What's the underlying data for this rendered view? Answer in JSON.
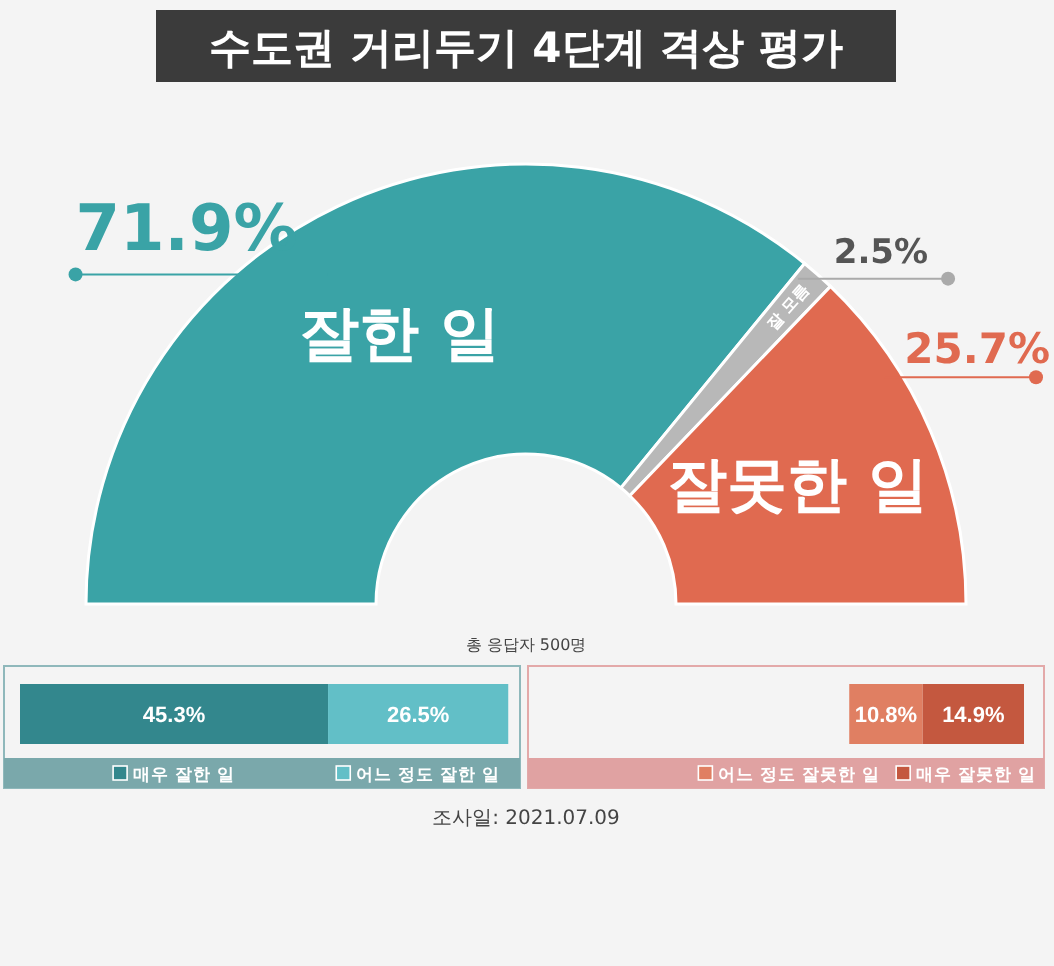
{
  "chart_data": [
    {
      "type": "donut",
      "title": "수도권 거리두기 4단계 격상 평가",
      "categories": [
        "잘한 일",
        "잘 모름",
        "잘못한 일"
      ],
      "values": [
        71.9,
        2.5,
        25.7
      ],
      "colors": [
        "#3aa3a6",
        "#b8b8b8",
        "#e06a50"
      ],
      "value_labels": [
        "71.9%",
        "2.5%",
        "25.7%"
      ],
      "annotations": [
        "총 응답자 500명",
        "조사일: 2021.07.09"
      ]
    },
    {
      "type": "bar",
      "orientation": "horizontal",
      "stacked": true,
      "categories": [
        null
      ],
      "legend": "bottom",
      "series": [
        {
          "name": "매우 잘한 일",
          "color": "#33878d",
          "values": [
            45.3
          ],
          "value_labels": [
            "45.3%"
          ]
        },
        {
          "name": "어느 정도 잘한 일",
          "color": "#62bfc7",
          "values": [
            26.5
          ],
          "value_labels": [
            "26.5%"
          ]
        }
      ]
    },
    {
      "type": "bar",
      "orientation": "horizontal",
      "stacked": true,
      "categories": [
        null
      ],
      "legend": "bottom",
      "series": [
        {
          "name": "어느 정도 잘못한 일",
          "color": "#e07f62",
          "values": [
            10.8
          ],
          "value_labels": [
            "10.8%"
          ]
        },
        {
          "name": "매우 잘못한 일",
          "color": "#c4583f",
          "values": [
            14.9
          ],
          "value_labels": [
            "14.9%"
          ]
        }
      ]
    }
  ]
}
